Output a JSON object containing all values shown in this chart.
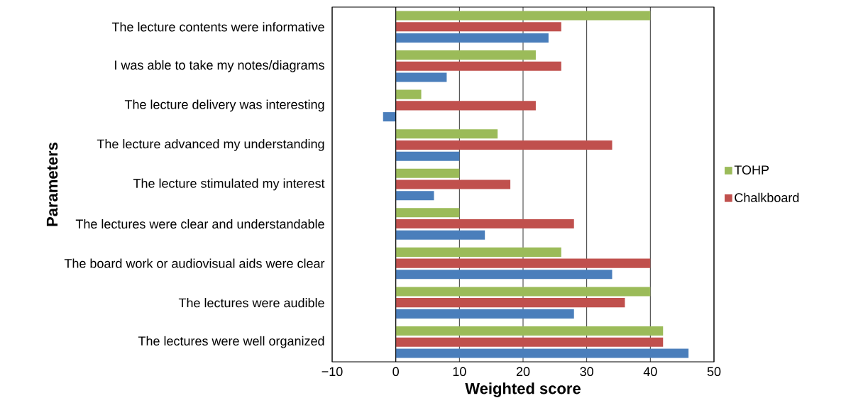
{
  "chart_data": {
    "type": "bar",
    "orientation": "horizontal",
    "xlabel": "Weighted score",
    "ylabel": "Parameters",
    "categories": [
      "The lecture contents were informative",
      "I was able to take my notes/diagrams",
      "The lecture delivery was interesting",
      "The lecture advanced my understanding",
      "The lecture stimulated my interest",
      "The lectures were clear and understandable",
      "The board work or audiovisual aids were clear",
      "The lectures were audible",
      "The lectures were well organized"
    ],
    "series": [
      {
        "color": "#4a7ebb",
        "values": [
          24,
          8,
          -2,
          10,
          6,
          14,
          34,
          28,
          46
        ]
      },
      {
        "name": "Chalkboard",
        "color": "#c0504d",
        "values": [
          26,
          26,
          22,
          34,
          18,
          28,
          40,
          36,
          42
        ]
      },
      {
        "name": "TOHP",
        "color": "#9bbb59",
        "values": [
          40,
          22,
          4,
          16,
          10,
          10,
          26,
          40,
          42
        ]
      }
    ],
    "xlim": [
      -10,
      50
    ],
    "xticks": [
      {
        "value": -10,
        "label": "−10"
      },
      0,
      10,
      20,
      30,
      40,
      50
    ],
    "grid": "x",
    "legend": "right"
  }
}
